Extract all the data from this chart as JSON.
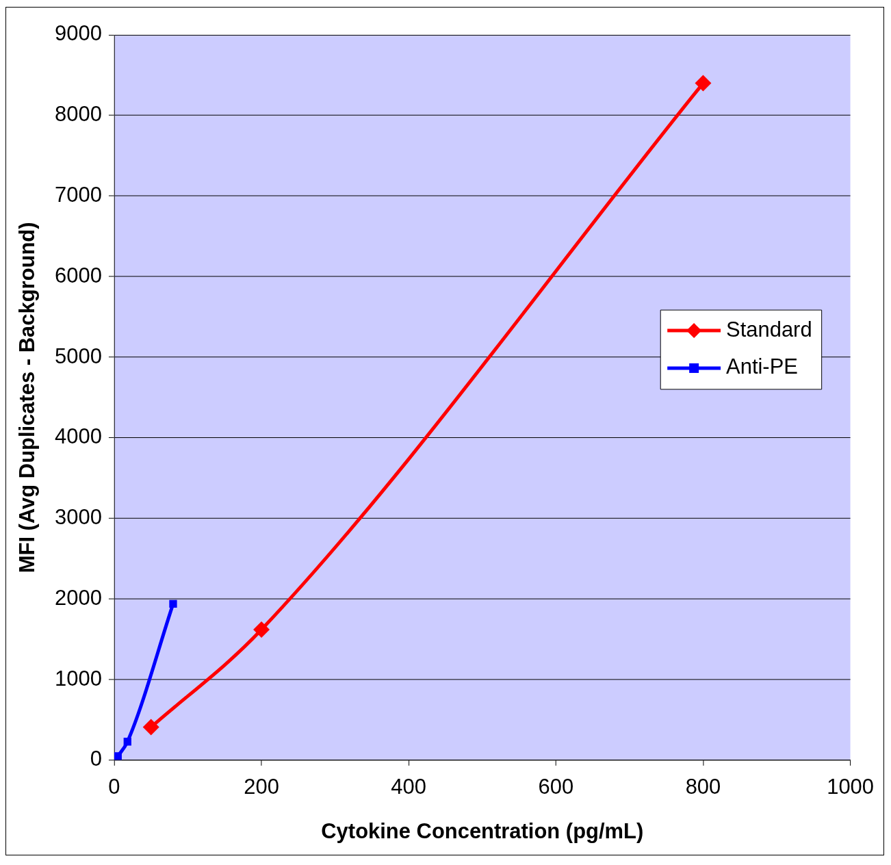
{
  "chart_data": {
    "type": "line",
    "xlabel": "Cytokine Concentration (pg/mL)",
    "ylabel": "MFI (Avg Duplicates - Background)",
    "xlim": [
      0,
      1000
    ],
    "xticks": [
      0,
      200,
      400,
      600,
      800,
      1000
    ],
    "ylim": [
      0,
      9000
    ],
    "yticks": [
      0,
      1000,
      2000,
      3000,
      4000,
      5000,
      6000,
      7000,
      8000,
      9000
    ],
    "grid": "y",
    "legend": "right",
    "series": [
      {
        "name": "Standard",
        "color": "#ff0000",
        "marker": "diamond",
        "x": [
          50,
          200,
          800
        ],
        "values": [
          410,
          1620,
          8400
        ]
      },
      {
        "name": "Anti-PE",
        "color": "#0000ff",
        "marker": "square",
        "x": [
          5,
          18,
          80
        ],
        "values": [
          50,
          230,
          1940
        ]
      }
    ]
  }
}
